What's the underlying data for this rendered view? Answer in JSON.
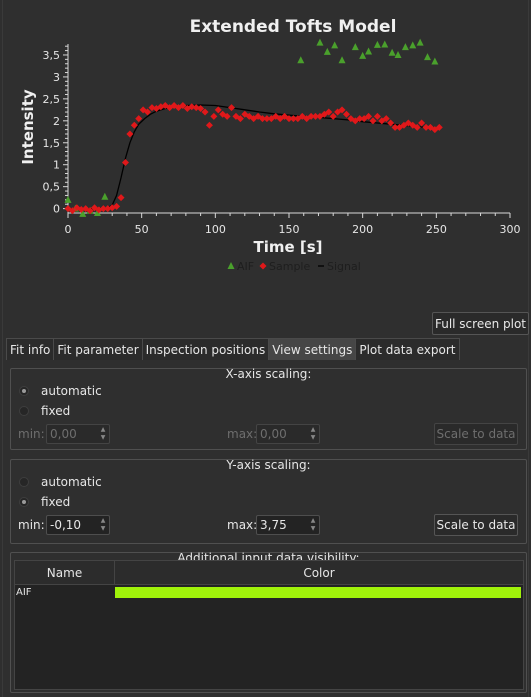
{
  "chart_data": {
    "type": "scatter",
    "title": "Extended Tofts Model",
    "xlabel": "Time [s]",
    "ylabel": "Intensity",
    "xlim": [
      0,
      300
    ],
    "ylim": [
      -0.1,
      3.75
    ],
    "x_ticks": [
      0,
      50,
      100,
      150,
      200,
      250,
      300
    ],
    "y_ticks": [
      0,
      0.5,
      1,
      1.5,
      2,
      2.5,
      3,
      3.5
    ],
    "y_tick_labels": [
      "0",
      "0,5",
      "1",
      "1,5",
      "2",
      "2,5",
      "3",
      "3,5"
    ],
    "legend": {
      "placement": "bottom-center",
      "entries": [
        "AIF",
        "Sample",
        "Signal"
      ]
    },
    "series": [
      {
        "name": "AIF",
        "marker": "triangle",
        "color": "#4aa02c",
        "x": [
          0,
          5,
          10,
          15,
          20,
          25,
          158,
          171,
          176,
          181,
          186,
          195,
          200,
          204,
          210,
          215,
          220,
          224,
          229,
          234,
          239,
          244,
          249
        ],
        "y": [
          0.2,
          0.0,
          -0.12,
          -0.05,
          -0.1,
          0.27,
          3.38,
          3.78,
          3.57,
          3.72,
          3.38,
          3.68,
          3.48,
          3.58,
          3.73,
          3.74,
          3.55,
          3.5,
          3.68,
          3.72,
          3.78,
          3.45,
          3.35
        ]
      },
      {
        "name": "Sample",
        "marker": "diamond",
        "color": "#e0181a",
        "x": [
          0,
          3,
          6,
          9,
          12,
          15,
          18,
          21,
          24,
          27,
          30,
          33,
          36,
          39,
          42,
          45,
          48,
          51,
          54,
          57,
          60,
          63,
          66,
          69,
          72,
          75,
          78,
          81,
          84,
          87,
          90,
          93,
          96,
          99,
          102,
          105,
          108,
          111,
          114,
          117,
          120,
          123,
          126,
          129,
          132,
          135,
          138,
          141,
          144,
          147,
          150,
          153,
          156,
          159,
          162,
          165,
          168,
          171,
          174,
          177,
          180,
          183,
          186,
          189,
          192,
          195,
          198,
          201,
          204,
          207,
          210,
          213,
          216,
          219,
          222,
          225,
          228,
          231,
          234,
          237,
          240,
          243,
          246,
          249,
          252
        ],
        "y": [
          0.0,
          -0.05,
          0.02,
          -0.02,
          0.0,
          -0.05,
          0.02,
          -0.03,
          0.0,
          0.0,
          0.02,
          0.05,
          0.25,
          1.05,
          1.7,
          1.9,
          2.05,
          2.25,
          2.2,
          2.3,
          2.28,
          2.32,
          2.35,
          2.3,
          2.35,
          2.3,
          2.35,
          2.28,
          2.32,
          2.3,
          2.28,
          2.2,
          1.9,
          2.1,
          2.25,
          2.15,
          2.1,
          2.3,
          2.1,
          2.05,
          2.15,
          2.1,
          2.05,
          2.1,
          2.05,
          2.05,
          2.05,
          2.1,
          2.05,
          2.1,
          2.05,
          2.05,
          2.05,
          2.1,
          2.05,
          2.1,
          2.1,
          2.1,
          2.15,
          2.2,
          2.1,
          2.2,
          2.25,
          2.15,
          2.05,
          2.0,
          2.05,
          2.05,
          2.1,
          2.0,
          2.1,
          2.0,
          2.05,
          1.95,
          1.85,
          1.85,
          1.9,
          1.95,
          1.9,
          1.85,
          1.95,
          1.85,
          1.85,
          1.8,
          1.85
        ]
      },
      {
        "name": "Signal",
        "type": "line",
        "color": "#000000",
        "x": [
          0,
          10,
          20,
          27,
          30,
          33,
          36,
          39,
          42,
          45,
          48,
          52,
          56,
          60,
          66,
          72,
          80,
          90,
          100,
          110,
          120,
          130,
          140,
          150,
          160,
          170,
          180,
          190,
          200,
          210,
          220,
          230,
          240,
          250,
          252
        ],
        "y": [
          0.0,
          0.0,
          0.0,
          0.02,
          0.08,
          0.3,
          0.7,
          1.15,
          1.5,
          1.75,
          1.92,
          2.05,
          2.15,
          2.22,
          2.28,
          2.32,
          2.35,
          2.36,
          2.35,
          2.3,
          2.25,
          2.2,
          2.16,
          2.13,
          2.1,
          2.08,
          2.05,
          2.02,
          1.98,
          1.95,
          1.92,
          1.89,
          1.86,
          1.84,
          1.83
        ]
      }
    ]
  },
  "buttons": {
    "full_screen": "Full screen plot",
    "scale_to_data": "Scale to data"
  },
  "tabs": [
    "Fit info",
    "Fit parameter",
    "Inspection positions",
    "View settings",
    "Plot data export"
  ],
  "x_axis_scaling": {
    "title": "X-axis scaling:",
    "automatic": "automatic",
    "fixed": "fixed",
    "min_label": "min:",
    "min_value": "0,00",
    "max_label": "max:",
    "max_value": "0,00",
    "mode": "automatic"
  },
  "y_axis_scaling": {
    "title": "Y-axis scaling:",
    "automatic": "automatic",
    "fixed": "fixed",
    "min_label": "min:",
    "min_value": "-0,10",
    "max_label": "max:",
    "max_value": "3,75",
    "mode": "fixed"
  },
  "visibility": {
    "title": "Additional input data visibility:",
    "columns": [
      "Name",
      "Color"
    ],
    "rows": [
      {
        "name": "AIF",
        "color": "#a0f20a"
      }
    ]
  }
}
